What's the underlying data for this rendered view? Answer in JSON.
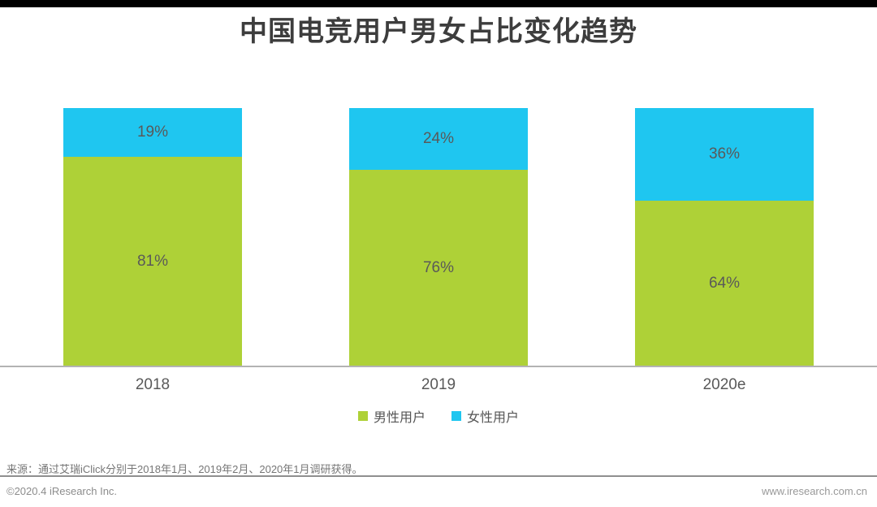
{
  "chart_data": {
    "type": "bar",
    "stacked": true,
    "title": "中国电竞用户男女占比变化趋势",
    "categories": [
      "2018",
      "2019",
      "2020e"
    ],
    "series": [
      {
        "name": "男性用户",
        "color": "#AED137",
        "values": [
          81,
          76,
          64
        ]
      },
      {
        "name": "女性用户",
        "color": "#1FC6F0",
        "values": [
          19,
          24,
          36
        ]
      }
    ],
    "segment_order_top_to_bottom": [
      "女性用户",
      "男性用户"
    ],
    "value_suffix": "%",
    "value_labels": "inside",
    "xlabel": "",
    "ylabel": "",
    "ylim": [
      0,
      100
    ],
    "grid": false,
    "legend_position": "bottom"
  },
  "legend": {
    "items": [
      {
        "label": "男性用户",
        "color": "#AED137"
      },
      {
        "label": "女性用户",
        "color": "#1FC6F0"
      }
    ]
  },
  "footer": {
    "source_note": "来源：通过艾瑞iClick分别于2018年1月、2019年2月、2020年1月调研获得。",
    "copyright": "©2020.4 iResearch Inc.",
    "website": "www.iresearch.com.cn"
  },
  "colors": {
    "male_green": "#AED137",
    "female_cyan": "#1FC6F0",
    "axis_line": "#B3B3B3",
    "title_text": "#3D3D3D",
    "label_text": "#595959",
    "footer_text": "#8C8C8C",
    "top_strip": "#000000"
  }
}
